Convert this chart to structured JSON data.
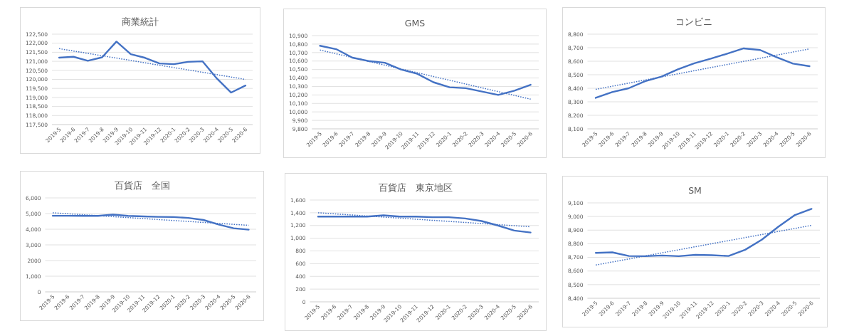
{
  "chart_data": [
    {
      "type": "line",
      "title": "商業統計",
      "categories": [
        "2019-5",
        "2019-6",
        "2019-7",
        "2019-8",
        "2019-9",
        "2019-10",
        "2019-11",
        "2019-12",
        "2020-1",
        "2020-2",
        "2020-3",
        "2020-4",
        "2020-5",
        "2020-6"
      ],
      "series": [
        {
          "color": "#4472c4",
          "line_style": "solid",
          "values": [
            121200,
            121250,
            121030,
            121220,
            122090,
            121390,
            121190,
            120880,
            120840,
            120970,
            121000,
            120050,
            119270,
            119660
          ]
        },
        {
          "type": "line",
          "color": "#4472c4",
          "line_style": "dotted",
          "x": [
            "2019-5",
            "2020-6"
          ],
          "values": [
            121700,
            120000
          ]
        }
      ],
      "ylim": [
        117500,
        122500
      ],
      "yticks": [
        {
          "value": 117500,
          "label": "117,500"
        },
        {
          "value": 118000,
          "label": "118,000"
        },
        {
          "value": 118500,
          "label": "118,500"
        },
        {
          "value": 119000,
          "label": "119,000"
        },
        {
          "value": 119500,
          "label": "119,500"
        },
        {
          "value": 120000,
          "label": "120,000"
        },
        {
          "value": 120500,
          "label": "120,500"
        },
        {
          "value": 121000,
          "label": "121,000"
        },
        {
          "value": 121500,
          "label": "121,500"
        },
        {
          "value": 122000,
          "label": "122,000"
        },
        {
          "value": 122500,
          "label": "122,500"
        }
      ],
      "grid": "y"
    },
    {
      "type": "line",
      "title": "GMS",
      "categories": [
        "2019-5",
        "2019-6",
        "2019-7",
        "2019-8",
        "2019-9",
        "2019-10",
        "2019-11",
        "2019-12",
        "2020-1",
        "2020-2",
        "2020-3",
        "2020-4",
        "2020-5",
        "2020-6"
      ],
      "series": [
        {
          "color": "#4472c4",
          "line_style": "solid",
          "values": [
            10780,
            10740,
            10640,
            10600,
            10580,
            10500,
            10450,
            10350,
            10290,
            10280,
            10240,
            10200,
            10250,
            10320
          ]
        },
        {
          "type": "line",
          "color": "#4472c4",
          "line_style": "dotted",
          "x": [
            "2019-5",
            "2020-6"
          ],
          "values": [
            10730,
            10150
          ]
        }
      ],
      "ylim": [
        9800,
        10900
      ],
      "yticks": [
        {
          "value": 9800,
          "label": "9,800"
        },
        {
          "value": 9900,
          "label": "9,900"
        },
        {
          "value": 10000,
          "label": "10,000"
        },
        {
          "value": 10100,
          "label": "10,100"
        },
        {
          "value": 10200,
          "label": "10,200"
        },
        {
          "value": 10300,
          "label": "10,300"
        },
        {
          "value": 10400,
          "label": "10,400"
        },
        {
          "value": 10500,
          "label": "10,500"
        },
        {
          "value": 10600,
          "label": "10,600"
        },
        {
          "value": 10700,
          "label": "10,700"
        },
        {
          "value": 10800,
          "label": "10,800"
        },
        {
          "value": 10900,
          "label": "10,900"
        }
      ],
      "grid": "y"
    },
    {
      "type": "line",
      "title": "コンビニ",
      "categories": [
        "2019-5",
        "2019-6",
        "2019-7",
        "2019-8",
        "2019-9",
        "2019-10",
        "2019-11",
        "2019-12",
        "2020-1",
        "2020-2",
        "2020-3",
        "2020-4",
        "2020-5",
        "2020-6"
      ],
      "series": [
        {
          "color": "#4472c4",
          "line_style": "solid",
          "values": [
            8329,
            8372,
            8400,
            8452,
            8486,
            8540,
            8585,
            8619,
            8656,
            8695,
            8683,
            8630,
            8582,
            8563
          ]
        },
        {
          "type": "line",
          "color": "#4472c4",
          "line_style": "dotted",
          "x": [
            "2019-5",
            "2020-6"
          ],
          "values": [
            8392,
            8691
          ]
        }
      ],
      "ylim": [
        8100,
        8800
      ],
      "yticks": [
        {
          "value": 8100,
          "label": "8,100"
        },
        {
          "value": 8200,
          "label": "8,200"
        },
        {
          "value": 8300,
          "label": "8,300"
        },
        {
          "value": 8400,
          "label": "8,400"
        },
        {
          "value": 8500,
          "label": "8,500"
        },
        {
          "value": 8600,
          "label": "8,600"
        },
        {
          "value": 8700,
          "label": "8,700"
        },
        {
          "value": 8800,
          "label": "8,800"
        }
      ],
      "grid": "y"
    },
    {
      "type": "line",
      "title": "百貨店　全国",
      "categories": [
        "2019-5",
        "2019-6",
        "2019-7",
        "2019-8",
        "2019-9",
        "2019-10",
        "2019-11",
        "2019-12",
        "2020-1",
        "2020-2",
        "2020-3",
        "2020-4",
        "2020-5",
        "2020-6"
      ],
      "series": [
        {
          "color": "#4472c4",
          "line_style": "solid",
          "values": [
            4860,
            4860,
            4850,
            4850,
            4930,
            4850,
            4820,
            4790,
            4780,
            4720,
            4590,
            4300,
            4060,
            3970
          ]
        },
        {
          "type": "line",
          "color": "#4472c4",
          "line_style": "dotted",
          "x": [
            "2019-5",
            "2020-6"
          ],
          "values": [
            5050,
            4250
          ]
        }
      ],
      "ylim": [
        0,
        6000
      ],
      "yticks": [
        0,
        {
          "value": 1000,
          "label": "1,000"
        },
        2000,
        {
          "value": 3000,
          "label": "3,000"
        },
        {
          "value": 4000,
          "label": "4,000"
        },
        {
          "value": 5000,
          "label": "5,000"
        },
        {
          "value": 6000,
          "label": "6,000"
        }
      ],
      "grid": "y"
    },
    {
      "type": "line",
      "title": "百貨店　東京地区",
      "categories": [
        "2019-5",
        "2019-6",
        "2019-7",
        "2019-8",
        "2019-9",
        "2019-10",
        "2019-11",
        "2019-12",
        "2020-1",
        "2020-2",
        "2020-3",
        "2020-4",
        "2020-5",
        "2020-6"
      ],
      "series": [
        {
          "color": "#4472c4",
          "line_style": "solid",
          "values": [
            1340,
            1340,
            1340,
            1340,
            1360,
            1340,
            1340,
            1330,
            1330,
            1310,
            1270,
            1200,
            1120,
            1090
          ]
        },
        {
          "type": "line",
          "color": "#4472c4",
          "line_style": "dotted",
          "x": [
            "2019-5",
            "2020-6"
          ],
          "values": [
            1400,
            1180
          ]
        }
      ],
      "ylim": [
        0,
        1600
      ],
      "yticks": [
        0,
        200,
        400,
        600,
        800,
        {
          "value": 1000,
          "label": "1,000"
        },
        {
          "value": 1200,
          "label": "1,200"
        },
        {
          "value": 1400,
          "label": "1,400"
        },
        {
          "value": 1600,
          "label": "1,600"
        }
      ],
      "grid": "y"
    },
    {
      "type": "line",
      "title": "SM",
      "categories": [
        "2019-5",
        "2019-6",
        "2019-7",
        "2019-8",
        "2019-9",
        "2019-10",
        "2019-11",
        "2019-12",
        "2020-1",
        "2020-2",
        "2020-3",
        "2020-4",
        "2020-5",
        "2020-6"
      ],
      "series": [
        {
          "color": "#4472c4",
          "line_style": "solid",
          "values": [
            8733,
            8737,
            8710,
            8709,
            8714,
            8709,
            8719,
            8716,
            8710,
            8756,
            8830,
            8925,
            9011,
            9056
          ]
        },
        {
          "type": "line",
          "color": "#4472c4",
          "line_style": "dotted",
          "x": [
            "2019-5",
            "2020-6"
          ],
          "values": [
            8644,
            8935
          ]
        }
      ],
      "ylim": [
        8400,
        9100
      ],
      "yticks": [
        {
          "value": 8400,
          "label": "8,400"
        },
        {
          "value": 8500,
          "label": "8,500"
        },
        {
          "value": 8600,
          "label": "8,600"
        },
        {
          "value": 8700,
          "label": "8,700"
        },
        {
          "value": 8800,
          "label": "8,800"
        },
        {
          "value": 8900,
          "label": "8,900"
        },
        {
          "value": 9000,
          "label": "9,000"
        },
        {
          "value": 9100,
          "label": "9,100"
        }
      ],
      "grid": "y"
    }
  ]
}
